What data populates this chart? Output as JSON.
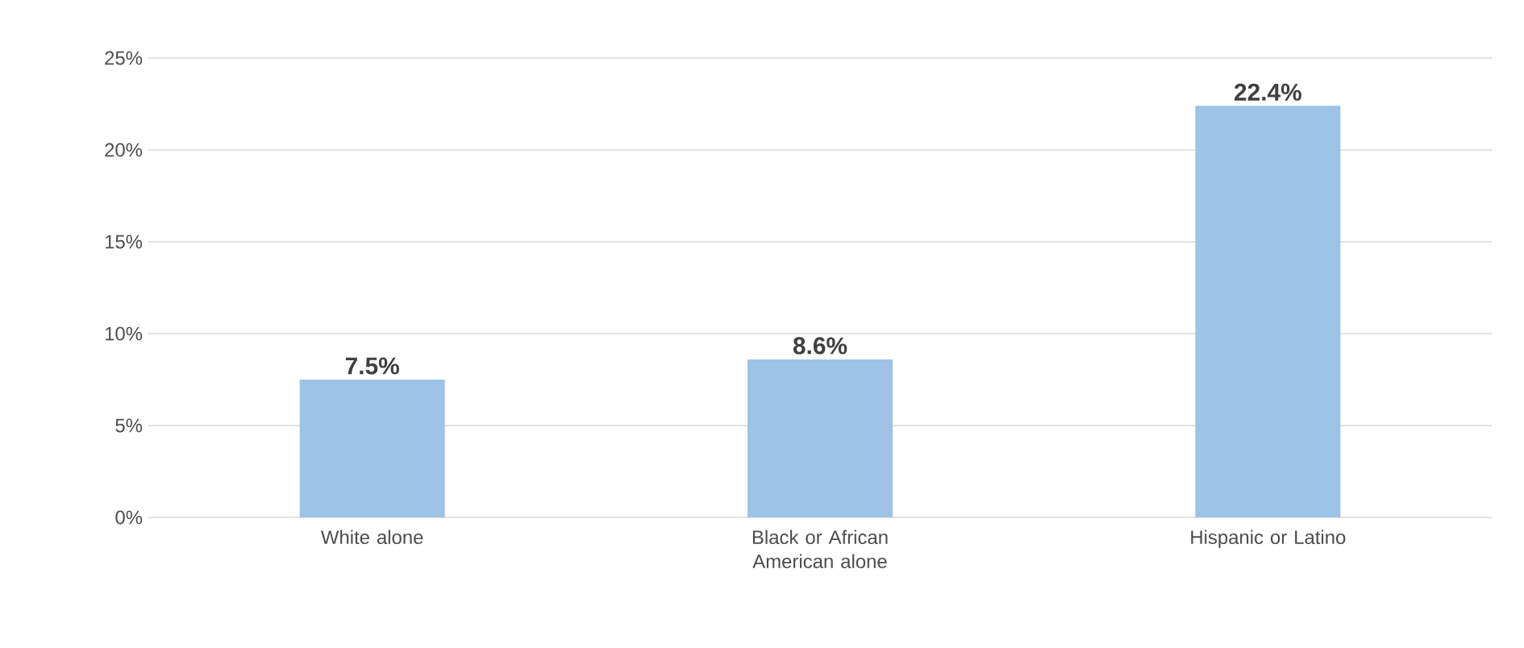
{
  "chart_data": {
    "type": "bar",
    "categories": [
      "White alone",
      "Black or African American alone",
      "Hispanic or Latino"
    ],
    "values": [
      7.5,
      8.6,
      22.4
    ],
    "color": "#9dc3e6",
    "value_labels": [
      "7.5%",
      "8.6%",
      "22.4%"
    ],
    "ylim": [
      0,
      25
    ],
    "yticks": [
      {
        "value": 0,
        "label": "0%"
      },
      {
        "value": 5,
        "label": "5%"
      },
      {
        "value": 10,
        "label": "10%"
      },
      {
        "value": 15,
        "label": "15%"
      },
      {
        "value": 20,
        "label": "20%"
      },
      {
        "value": 25,
        "label": "25%"
      }
    ],
    "grid": "y"
  }
}
